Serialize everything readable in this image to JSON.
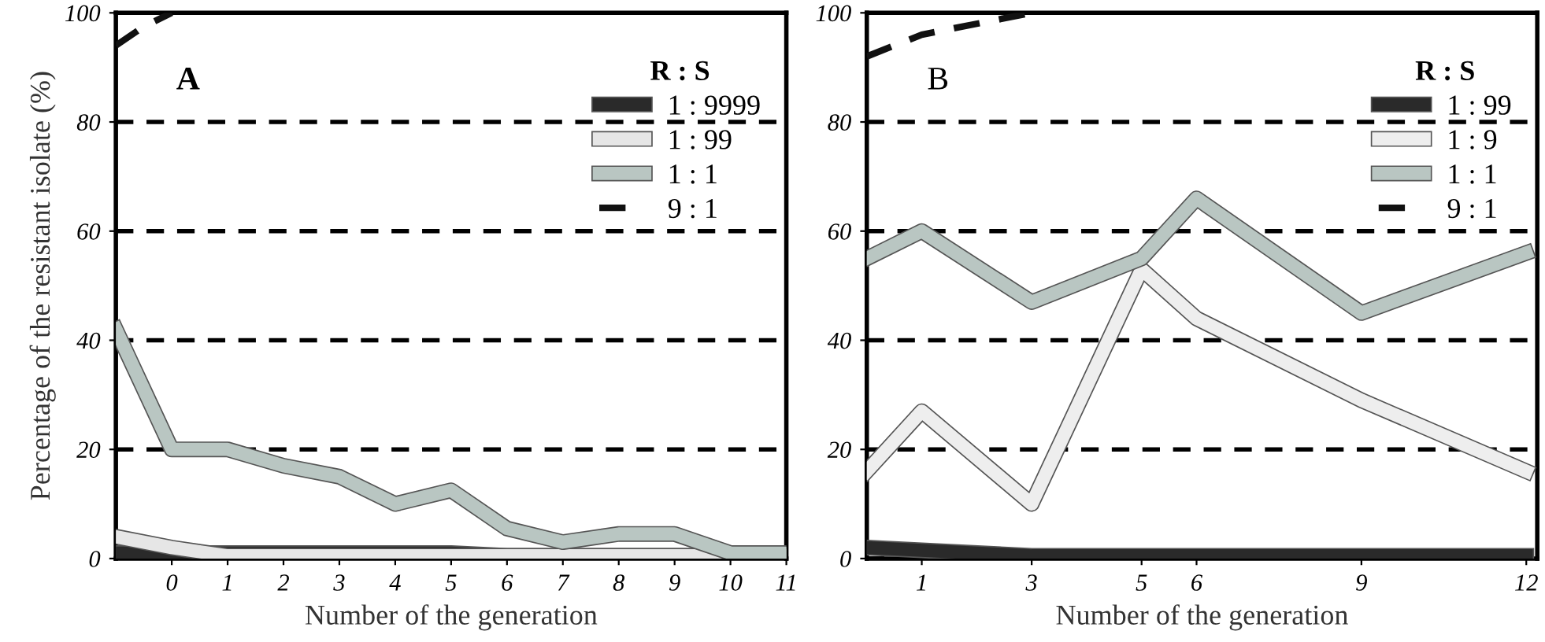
{
  "chart_data": [
    {
      "type": "line",
      "ylabel": "Percentage of the resistant isolate (%)",
      "xlabel": "Number of the generation",
      "annotations": [
        "A"
      ],
      "legend_title": "R : S",
      "legend": "top right",
      "grid": "y",
      "marker": "none",
      "xlim": [
        -1,
        11
      ],
      "xticks": [
        0,
        1,
        2,
        3,
        4,
        5,
        6,
        7,
        8,
        9,
        10,
        11
      ],
      "ylim": [
        0,
        100
      ],
      "yticks": [
        0,
        20,
        40,
        60,
        80,
        100
      ],
      "series": [
        {
          "name": "1 : 9999",
          "color": "#2a2a2a",
          "line_style": "solid",
          "x": [
            -1,
            0,
            1,
            2,
            3,
            4,
            5,
            6,
            7,
            8,
            9,
            10,
            11
          ],
          "values": [
            1,
            1,
            1,
            1,
            1,
            1,
            1,
            0.5,
            0.5,
            0.5,
            0.5,
            0.5,
            0.5
          ]
        },
        {
          "name": "1 : 99",
          "color": "#e6e6e6",
          "line_style": "solid",
          "x": [
            -1,
            0,
            1,
            2,
            3,
            4,
            5,
            6,
            7,
            8,
            9,
            10,
            11
          ],
          "values": [
            4,
            2,
            0.5,
            0.5,
            0.5,
            0.5,
            0.5,
            0.5,
            0.5,
            0.5,
            0.5,
            0.5,
            0.5
          ]
        },
        {
          "name": "1 : 1",
          "color": "#b9c6c2",
          "line_style": "solid",
          "x": [
            -1,
            0,
            1,
            2,
            3,
            4,
            5,
            6,
            7,
            8,
            9,
            10,
            11
          ],
          "values": [
            42,
            20,
            20,
            17,
            15,
            10,
            12.5,
            5.5,
            3,
            4.5,
            4.5,
            1,
            1
          ]
        },
        {
          "name": "9 : 1",
          "color": "#111111",
          "line_style": "dashed",
          "x": [
            -1,
            -0.5,
            0
          ],
          "values": [
            94,
            97.5,
            100
          ]
        }
      ]
    },
    {
      "type": "line",
      "xlabel": "Number of the generation",
      "annotations": [
        "B"
      ],
      "legend_title": "R : S",
      "legend": "top right",
      "grid": "y",
      "marker": "none",
      "xlim": [
        0,
        12.2
      ],
      "xticks": [
        1,
        3,
        5,
        6,
        9,
        12
      ],
      "ylim": [
        0,
        100
      ],
      "yticks": [
        0,
        20,
        40,
        60,
        80,
        100
      ],
      "series": [
        {
          "name": "1 : 99",
          "color": "#2a2a2a",
          "line_style": "solid",
          "x": [
            0,
            1,
            3,
            5,
            6,
            9,
            12
          ],
          "values": [
            2,
            1.5,
            0.5,
            0.5,
            0.5,
            0.5,
            0.5
          ]
        },
        {
          "name": "1 : 9",
          "color": "#eeeeee",
          "line_style": "solid",
          "x": [
            0,
            1,
            3,
            5,
            6,
            9,
            12
          ],
          "values": [
            16,
            27,
            10,
            53,
            44,
            29,
            16
          ]
        },
        {
          "name": "1 : 1",
          "color": "#b9c6c2",
          "line_style": "solid",
          "x": [
            0,
            1,
            3,
            5,
            6,
            9,
            12
          ],
          "values": [
            55,
            60,
            47,
            55,
            66,
            45,
            56
          ]
        },
        {
          "name": "9 : 1",
          "color": "#111111",
          "line_style": "dashed",
          "x": [
            0,
            1,
            3
          ],
          "values": [
            92,
            96,
            100
          ]
        }
      ]
    }
  ]
}
